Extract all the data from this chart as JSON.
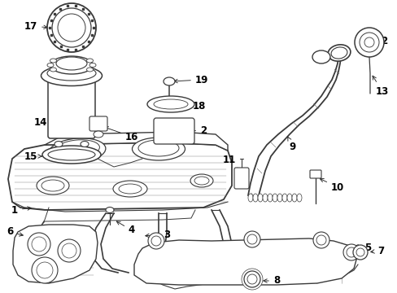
{
  "bg_color": "#ffffff",
  "line_color": "#3a3a3a",
  "label_color": "#000000",
  "label_fontsize": 8.5,
  "fig_width": 4.89,
  "fig_height": 3.6,
  "dpi": 100
}
